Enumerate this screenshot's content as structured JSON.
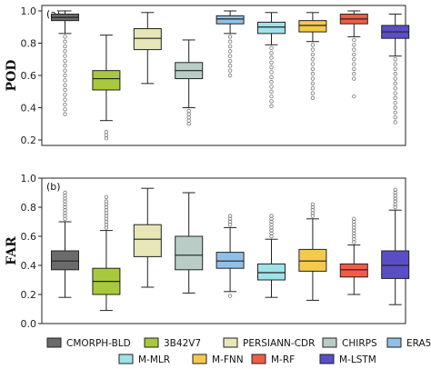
{
  "chart_data": [
    {
      "type": "box",
      "panel_label": "(a)",
      "ylabel": "POD",
      "ylim": [
        0.2,
        1.0
      ],
      "yticks": [
        "0.2",
        "0.4",
        "0.6",
        "0.8",
        "1.0"
      ],
      "categories": [
        "CMORPH-BLD",
        "3B42V7",
        "PERSIANN-CDR",
        "CHIRPS",
        "ERA5",
        "M-MLR",
        "M-FNN",
        "M-RF",
        "M-LSTM"
      ],
      "boxes": [
        {
          "whislo": 0.86,
          "q1": 0.94,
          "med": 0.96,
          "q3": 0.98,
          "whishi": 1.0,
          "fliers": [
            0.84,
            0.81,
            0.78,
            0.75,
            0.72,
            0.69,
            0.66,
            0.63,
            0.6,
            0.57,
            0.54,
            0.51,
            0.48,
            0.45,
            0.42,
            0.39,
            0.36
          ]
        },
        {
          "whislo": 0.32,
          "q1": 0.51,
          "med": 0.58,
          "q3": 0.63,
          "whishi": 0.85,
          "fliers": [
            0.25,
            0.23,
            0.21
          ]
        },
        {
          "whislo": 0.55,
          "q1": 0.76,
          "med": 0.83,
          "q3": 0.89,
          "whishi": 0.99,
          "fliers": []
        },
        {
          "whislo": 0.4,
          "q1": 0.58,
          "med": 0.63,
          "q3": 0.68,
          "whishi": 0.82,
          "fliers": [
            0.38,
            0.36,
            0.34,
            0.32,
            0.3
          ]
        },
        {
          "whislo": 0.86,
          "q1": 0.92,
          "med": 0.95,
          "q3": 0.97,
          "whishi": 1.0,
          "fliers": [
            0.84,
            0.81,
            0.78,
            0.75,
            0.72,
            0.69,
            0.66,
            0.63,
            0.6
          ]
        },
        {
          "whislo": 0.79,
          "q1": 0.86,
          "med": 0.9,
          "q3": 0.93,
          "whishi": 0.99,
          "fliers": [
            0.77,
            0.74,
            0.71,
            0.68,
            0.65,
            0.62,
            0.59,
            0.56,
            0.53,
            0.5,
            0.47,
            0.44,
            0.41
          ]
        },
        {
          "whislo": 0.81,
          "q1": 0.87,
          "med": 0.91,
          "q3": 0.94,
          "whishi": 0.99,
          "fliers": [
            0.79,
            0.76,
            0.73,
            0.7,
            0.67,
            0.64,
            0.61,
            0.58,
            0.55,
            0.52,
            0.49,
            0.46
          ]
        },
        {
          "whislo": 0.84,
          "q1": 0.92,
          "med": 0.95,
          "q3": 0.98,
          "whishi": 1.0,
          "fliers": [
            0.82,
            0.79,
            0.76,
            0.73,
            0.7,
            0.67,
            0.64,
            0.61,
            0.58,
            0.47
          ]
        },
        {
          "whislo": 0.72,
          "q1": 0.83,
          "med": 0.87,
          "q3": 0.91,
          "whishi": 0.98,
          "fliers": [
            0.7,
            0.67,
            0.64,
            0.61,
            0.58,
            0.55,
            0.52,
            0.49,
            0.46,
            0.43,
            0.4,
            0.37,
            0.34,
            0.31
          ]
        }
      ]
    },
    {
      "type": "box",
      "panel_label": "(b)",
      "ylabel": "FAR",
      "ylim": [
        0.0,
        1.0
      ],
      "yticks": [
        "0.0",
        "0.2",
        "0.4",
        "0.6",
        "0.8",
        "1.0"
      ],
      "categories": [
        "CMORPH-BLD",
        "3B42V7",
        "PERSIANN-CDR",
        "CHIRPS",
        "ERA5",
        "M-MLR",
        "M-FNN",
        "M-RF",
        "M-LSTM"
      ],
      "boxes": [
        {
          "whislo": 0.18,
          "q1": 0.37,
          "med": 0.43,
          "q3": 0.5,
          "whishi": 0.7,
          "fliers": [
            0.72,
            0.74,
            0.76,
            0.78,
            0.8,
            0.82,
            0.84,
            0.86,
            0.88,
            0.9
          ]
        },
        {
          "whislo": 0.09,
          "q1": 0.2,
          "med": 0.29,
          "q3": 0.38,
          "whishi": 0.64,
          "fliers": [
            0.66,
            0.68,
            0.7,
            0.72,
            0.74,
            0.76,
            0.78,
            0.8,
            0.82,
            0.84,
            0.87
          ]
        },
        {
          "whislo": 0.25,
          "q1": 0.46,
          "med": 0.58,
          "q3": 0.68,
          "whishi": 0.93,
          "fliers": []
        },
        {
          "whislo": 0.21,
          "q1": 0.37,
          "med": 0.47,
          "q3": 0.6,
          "whishi": 0.9,
          "fliers": []
        },
        {
          "whislo": 0.22,
          "q1": 0.38,
          "med": 0.43,
          "q3": 0.49,
          "whishi": 0.66,
          "fliers": [
            0.19,
            0.68,
            0.7,
            0.72,
            0.74
          ]
        },
        {
          "whislo": 0.18,
          "q1": 0.3,
          "med": 0.35,
          "q3": 0.41,
          "whishi": 0.58,
          "fliers": [
            0.6,
            0.62,
            0.64,
            0.66,
            0.68,
            0.7,
            0.72,
            0.74
          ]
        },
        {
          "whislo": 0.16,
          "q1": 0.36,
          "med": 0.43,
          "q3": 0.51,
          "whishi": 0.72,
          "fliers": [
            0.74,
            0.76,
            0.78,
            0.8,
            0.82
          ]
        },
        {
          "whislo": 0.2,
          "q1": 0.32,
          "med": 0.37,
          "q3": 0.41,
          "whishi": 0.54,
          "fliers": [
            0.56,
            0.58,
            0.6,
            0.62,
            0.64,
            0.66,
            0.68,
            0.7,
            0.72
          ]
        },
        {
          "whislo": 0.13,
          "q1": 0.31,
          "med": 0.4,
          "q3": 0.5,
          "whishi": 0.78,
          "fliers": [
            0.8,
            0.82,
            0.84,
            0.86,
            0.88,
            0.9,
            0.92
          ]
        }
      ]
    }
  ],
  "legend": [
    {
      "label": "CMORPH-BLD",
      "color": "#6b6b6b"
    },
    {
      "label": "3B42V7",
      "color": "#a8c93c"
    },
    {
      "label": "PERSIANN-CDR",
      "color": "#e6e6b8"
    },
    {
      "label": "CHIRPS",
      "color": "#b9cdc6"
    },
    {
      "label": "ERA5",
      "color": "#92bfe6"
    },
    {
      "label": "M-MLR",
      "color": "#9fe3e8"
    },
    {
      "label": "M-FNN",
      "color": "#f5ca4c"
    },
    {
      "label": "M-RF",
      "color": "#f25b45"
    },
    {
      "label": "M-LSTM",
      "color": "#5a4ec7"
    }
  ]
}
